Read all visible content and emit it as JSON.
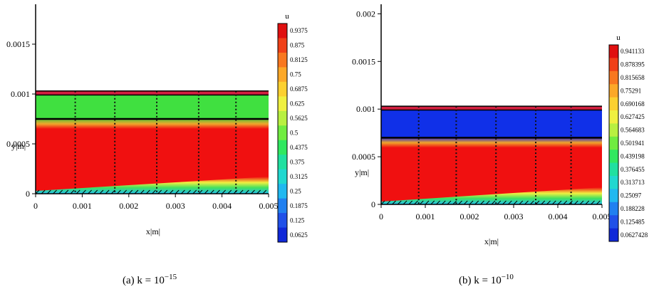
{
  "chart_data": [
    {
      "type": "heatmap",
      "panel_caption": {
        "label": "(a)  k = 10",
        "exponent": "−15"
      },
      "xlabel": "x|m|",
      "ylabel": "y|m|",
      "xlim": [
        0,
        0.005
      ],
      "ylim": [
        0,
        0.0019
      ],
      "x_ticks": [
        "0",
        "0.001",
        "0.002",
        "0.003",
        "0.004",
        "0.005"
      ],
      "y_ticks": [
        "0",
        "0.0005",
        "0.001",
        "0.0015"
      ],
      "y_tick_values": [
        0,
        0.0005,
        0.001,
        0.0015
      ],
      "x_tick_values": [
        0,
        0.001,
        0.002,
        0.003,
        0.004,
        0.005
      ],
      "colorbar": {
        "title": "u",
        "labels": [
          "0.9375",
          "0.875",
          "0.8125",
          "0.75",
          "0.6875",
          "0.625",
          "0.5625",
          "0.5",
          "0.4375",
          "0.375",
          "0.3125",
          "0.25",
          "0.1875",
          "0.125",
          "0.0625"
        ],
        "colors": [
          "#e01010",
          "#f04018",
          "#f87820",
          "#fca828",
          "#fcd030",
          "#f0f040",
          "#b8f040",
          "#70ec40",
          "#30e860",
          "#20e0a0",
          "#20d8d0",
          "#20b8f0",
          "#2080f0",
          "#2050e8",
          "#1028d8"
        ]
      },
      "layers": {
        "fluid_top": 0.00075,
        "fluid_bottom": 2e-05,
        "porous_top": 0.00099,
        "wall_top": 0.00103
      },
      "fluid_color": "#f01010",
      "porous_color": "#40e040",
      "profile_x": [
        0.00085,
        0.0017,
        0.0026,
        0.0035,
        0.0043
      ]
    },
    {
      "type": "heatmap",
      "panel_caption": {
        "label": "(b)  k = 10",
        "exponent": "−10"
      },
      "xlabel": "x|m|",
      "ylabel": "y|m|",
      "xlim": [
        0,
        0.005
      ],
      "ylim": [
        0,
        0.0021
      ],
      "x_ticks": [
        "0",
        "0.001",
        "0.002",
        "0.003",
        "0.004",
        "0.005"
      ],
      "y_ticks": [
        "0",
        "0.0005",
        "0.001",
        "0.0015",
        "0.002"
      ],
      "y_tick_values": [
        0,
        0.0005,
        0.001,
        0.0015,
        0.002
      ],
      "x_tick_values": [
        0,
        0.001,
        0.002,
        0.003,
        0.004,
        0.005
      ],
      "colorbar": {
        "title": "u",
        "labels": [
          "0.941133",
          "0.878395",
          "0.815658",
          "0.75291",
          "0.690168",
          "0.627425",
          "0.564683",
          "0.501941",
          "0.439198",
          "0.376455",
          "0.313713",
          "0.25097",
          "0.188228",
          "0.125485",
          "0.0627428"
        ],
        "colors": [
          "#e01010",
          "#f04018",
          "#f87820",
          "#fca828",
          "#fcd030",
          "#f0f040",
          "#b8f040",
          "#70ec40",
          "#30e860",
          "#20e0a0",
          "#20d8d0",
          "#20b8f0",
          "#2080f0",
          "#2050e8",
          "#1028d8"
        ]
      },
      "layers": {
        "fluid_top": 0.0007,
        "fluid_bottom": 2e-05,
        "porous_top": 0.00099,
        "wall_top": 0.00103
      },
      "fluid_color": "#f01010",
      "porous_color": "#1030e8",
      "profile_x": [
        0.00085,
        0.0017,
        0.0026,
        0.0035,
        0.0043
      ]
    }
  ]
}
